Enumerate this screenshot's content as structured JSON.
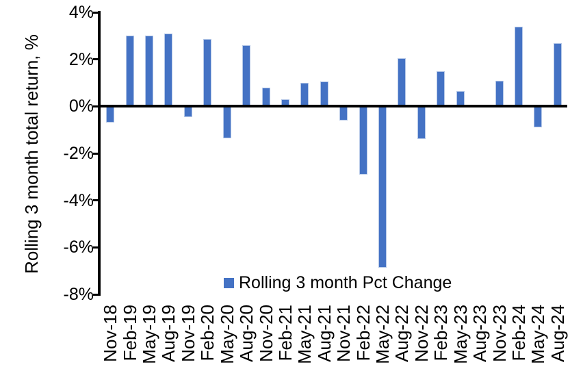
{
  "chart_data": {
    "type": "bar",
    "categories": [
      "Nov-18",
      "Feb-19",
      "May-19",
      "Aug-19",
      "Nov-19",
      "Feb-20",
      "May-20",
      "Aug-20",
      "Nov-20",
      "Feb-21",
      "May-21",
      "Aug-21",
      "Nov-21",
      "Feb-22",
      "May-22",
      "Aug-22",
      "Nov-22",
      "Feb-23",
      "May-23",
      "Aug-23",
      "Nov-23",
      "Feb-24",
      "May-24",
      "Aug-24"
    ],
    "series": [
      {
        "name": "Rolling 3 month Pct Change",
        "values": [
          -0.7,
          3.0,
          3.0,
          3.1,
          -0.45,
          2.85,
          -1.35,
          2.6,
          0.8,
          0.3,
          1.0,
          1.05,
          -0.6,
          -2.9,
          -6.85,
          2.05,
          -1.4,
          1.5,
          0.65,
          0.0,
          1.1,
          3.4,
          -0.9,
          2.7
        ]
      }
    ],
    "title": "",
    "xlabel": "",
    "ylabel": "Rolling 3 month total return, %",
    "ylim": [
      -8,
      4
    ],
    "ytick_values": [
      4,
      2,
      0,
      -2,
      -4,
      -6,
      -8
    ],
    "ytick_labels": [
      "4%",
      "2%",
      "0%",
      "-2%",
      "-4%",
      "-6%",
      "-8%"
    ],
    "grid": "off",
    "legend_position": "bottom-center",
    "bar_color": "#4472C4",
    "bar_border_color": "#B4C7E7",
    "axis_color": "#000000"
  },
  "axes": {
    "y_title": "Rolling 3 month total return, %"
  },
  "legend": {
    "label": "Rolling 3 month Pct Change",
    "marker_color": "#4472C4"
  }
}
